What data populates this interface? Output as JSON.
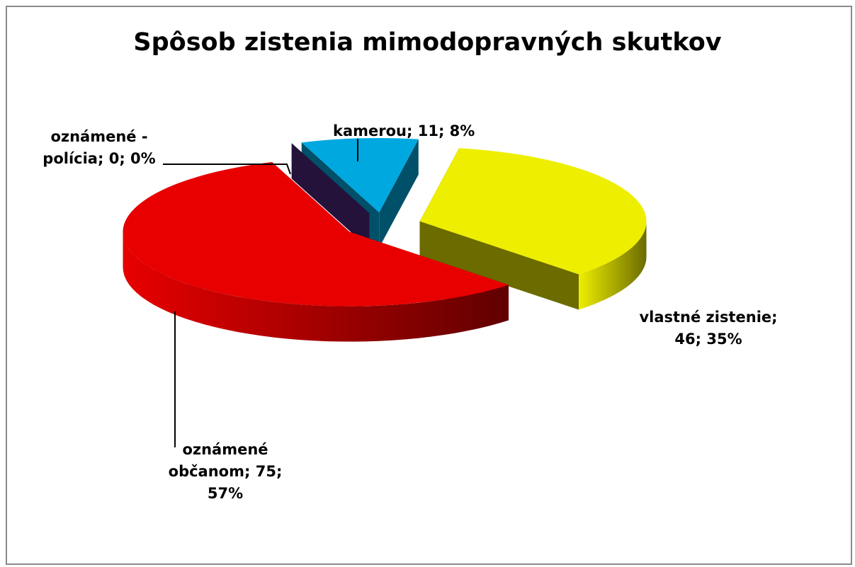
{
  "chart_data": {
    "type": "pie3d",
    "title": "Spôsob zistenia mimodopravných skutkov",
    "categories": [
      "kamerou",
      "vlastné zistenie",
      "oznámené občanom",
      "oznámené - polícia"
    ],
    "values": [
      11,
      46,
      75,
      0
    ],
    "percentages": [
      8,
      35,
      57,
      0
    ],
    "percent_labels": [
      "8%",
      "35%",
      "57%",
      "0%"
    ],
    "separator": "; ",
    "colors": [
      "#00a8e0",
      "#eeee00",
      "#e80000",
      "#3a1f52"
    ],
    "side_colors": [
      "#00506a",
      "#6b6b00",
      "#600000",
      "#24123a"
    ]
  }
}
